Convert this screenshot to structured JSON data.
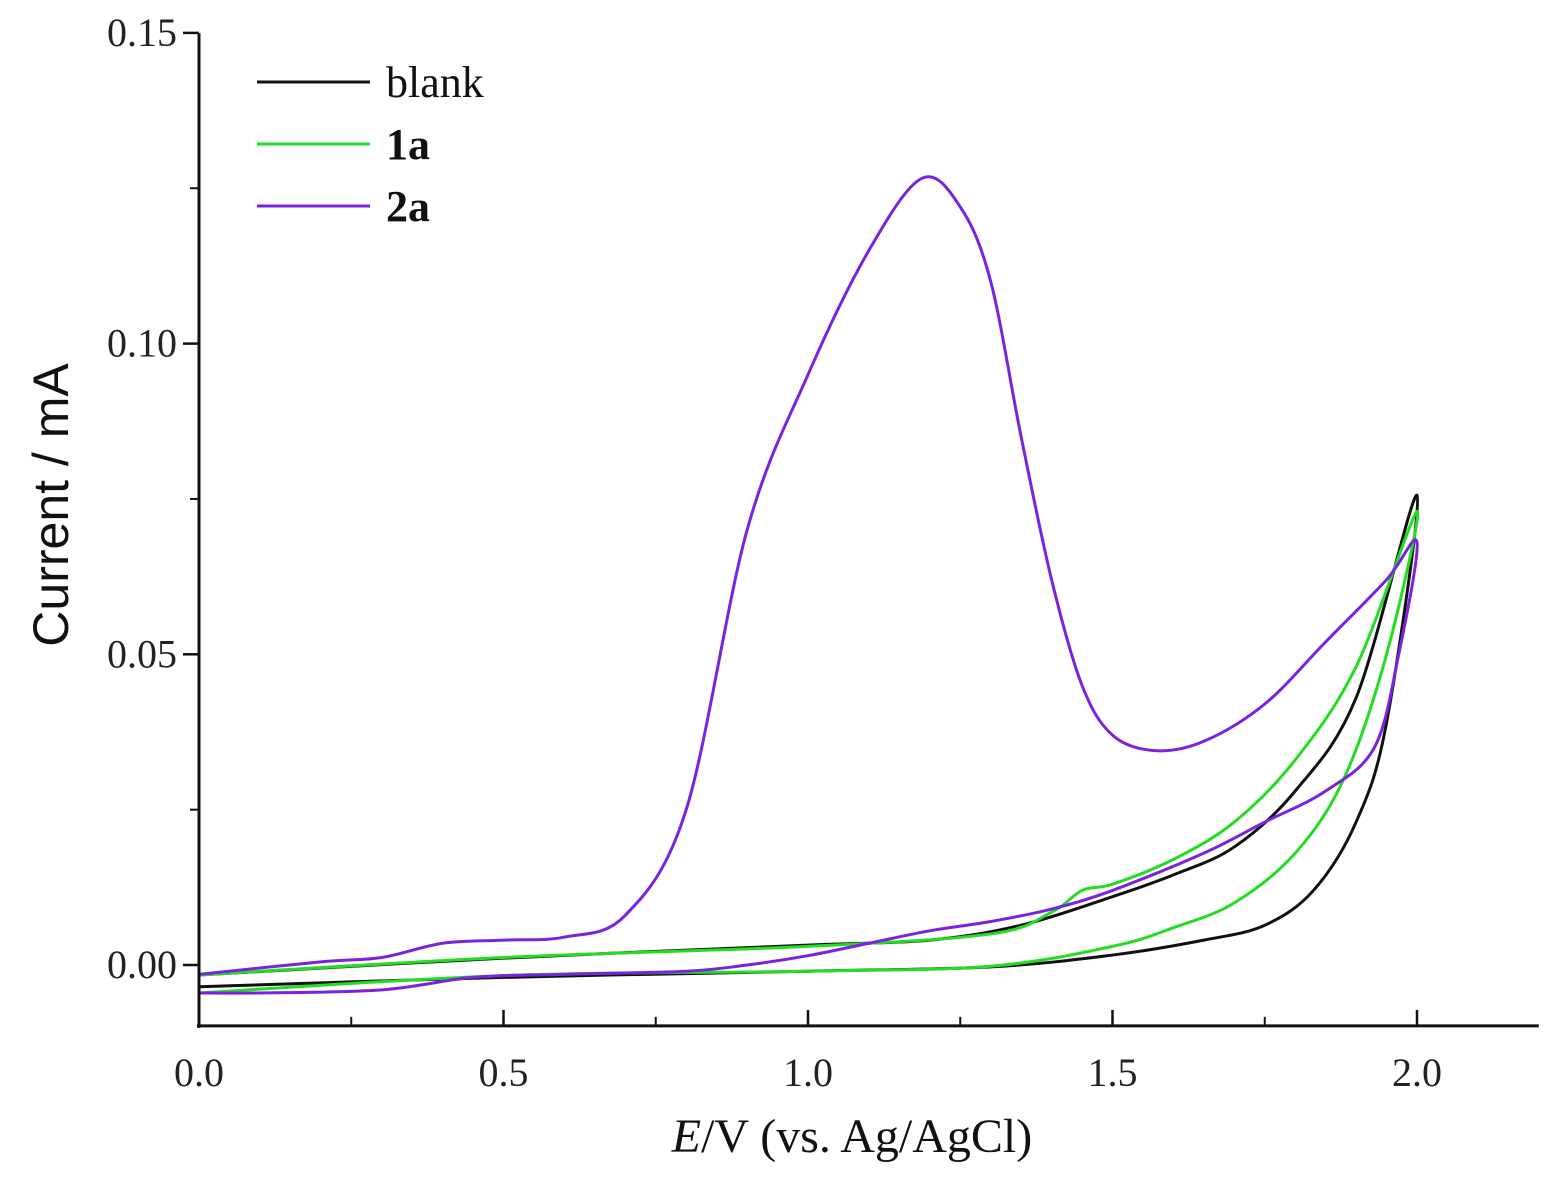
{
  "chart_data": {
    "type": "line",
    "title": "",
    "xlabel_italic": "E",
    "xlabel_rest": "/V (vs. Ag/AgCl)",
    "ylabel": "Current / mA",
    "xlim": [
      0,
      2.2
    ],
    "ylim": [
      -0.0098,
      0.15
    ],
    "x_ticks": [
      0.0,
      0.5,
      1.0,
      1.5,
      2.0
    ],
    "x_tick_labels": [
      "0.0",
      "0.5",
      "1.0",
      "1.5",
      "2.0"
    ],
    "y_ticks": [
      0.0,
      0.05,
      0.1,
      0.15
    ],
    "y_tick_labels": [
      "0.00",
      "0.05",
      "0.10",
      "0.15"
    ],
    "grid": false,
    "legend_position": "top-left",
    "series": [
      {
        "name": "blank",
        "bold": false,
        "color": "#111111",
        "x": [
          0,
          0.5,
          1.0,
          1.2,
          1.35,
          1.5,
          1.6,
          1.7,
          1.8,
          1.9,
          2.0,
          1.95,
          1.9,
          1.83,
          1.75,
          1.65,
          1.5,
          1.3,
          1.0,
          0.5,
          0
        ],
        "y": [
          -0.0016,
          0.0011,
          0.0032,
          0.004,
          0.0064,
          0.011,
          0.0145,
          0.019,
          0.028,
          0.043,
          0.0756,
          0.039,
          0.023,
          0.012,
          0.0064,
          0.004,
          0.0016,
          -0.0003,
          -0.001,
          -0.002,
          -0.0035
        ]
      },
      {
        "name": "1a",
        "bold": true,
        "color": "#22dd22",
        "x": [
          0,
          0.5,
          1.0,
          1.3,
          1.4,
          1.45,
          1.5,
          1.6,
          1.7,
          1.8,
          1.9,
          2.0,
          1.95,
          1.88,
          1.8,
          1.7,
          1.6,
          1.5,
          1.3,
          1.0,
          0.5,
          0
        ],
        "y": [
          -0.0016,
          0.0012,
          0.003,
          0.005,
          0.0085,
          0.012,
          0.013,
          0.017,
          0.023,
          0.033,
          0.048,
          0.073,
          0.05,
          0.03,
          0.018,
          0.01,
          0.006,
          0.003,
          -0.0002,
          -0.001,
          -0.0017,
          -0.0045
        ]
      },
      {
        "name": "2a",
        "bold": true,
        "color": "#7b22e0",
        "x": [
          0,
          0.2,
          0.3,
          0.4,
          0.5,
          0.6,
          0.7,
          0.8,
          0.9,
          1.0,
          1.1,
          1.187,
          1.25,
          1.3,
          1.35,
          1.4,
          1.45,
          1.5,
          1.57,
          1.65,
          1.75,
          1.85,
          1.95,
          2.0,
          1.97,
          1.93,
          1.85,
          1.75,
          1.65,
          1.5,
          1.4,
          1.3,
          1.2,
          1.1,
          1.0,
          0.9,
          0.8,
          0.6,
          0.45,
          0.3,
          0.1,
          0
        ],
        "y": [
          -0.0015,
          0.0005,
          0.0012,
          0.0035,
          0.004,
          0.0045,
          0.008,
          0.025,
          0.07,
          0.095,
          0.115,
          0.1266,
          0.122,
          0.11,
          0.085,
          0.062,
          0.045,
          0.037,
          0.0345,
          0.036,
          0.042,
          0.052,
          0.062,
          0.068,
          0.05,
          0.035,
          0.028,
          0.023,
          0.018,
          0.012,
          0.009,
          0.007,
          0.0055,
          0.0035,
          0.0015,
          0.0,
          -0.001,
          -0.0015,
          -0.002,
          -0.004,
          -0.0045,
          -0.0045
        ]
      }
    ]
  }
}
